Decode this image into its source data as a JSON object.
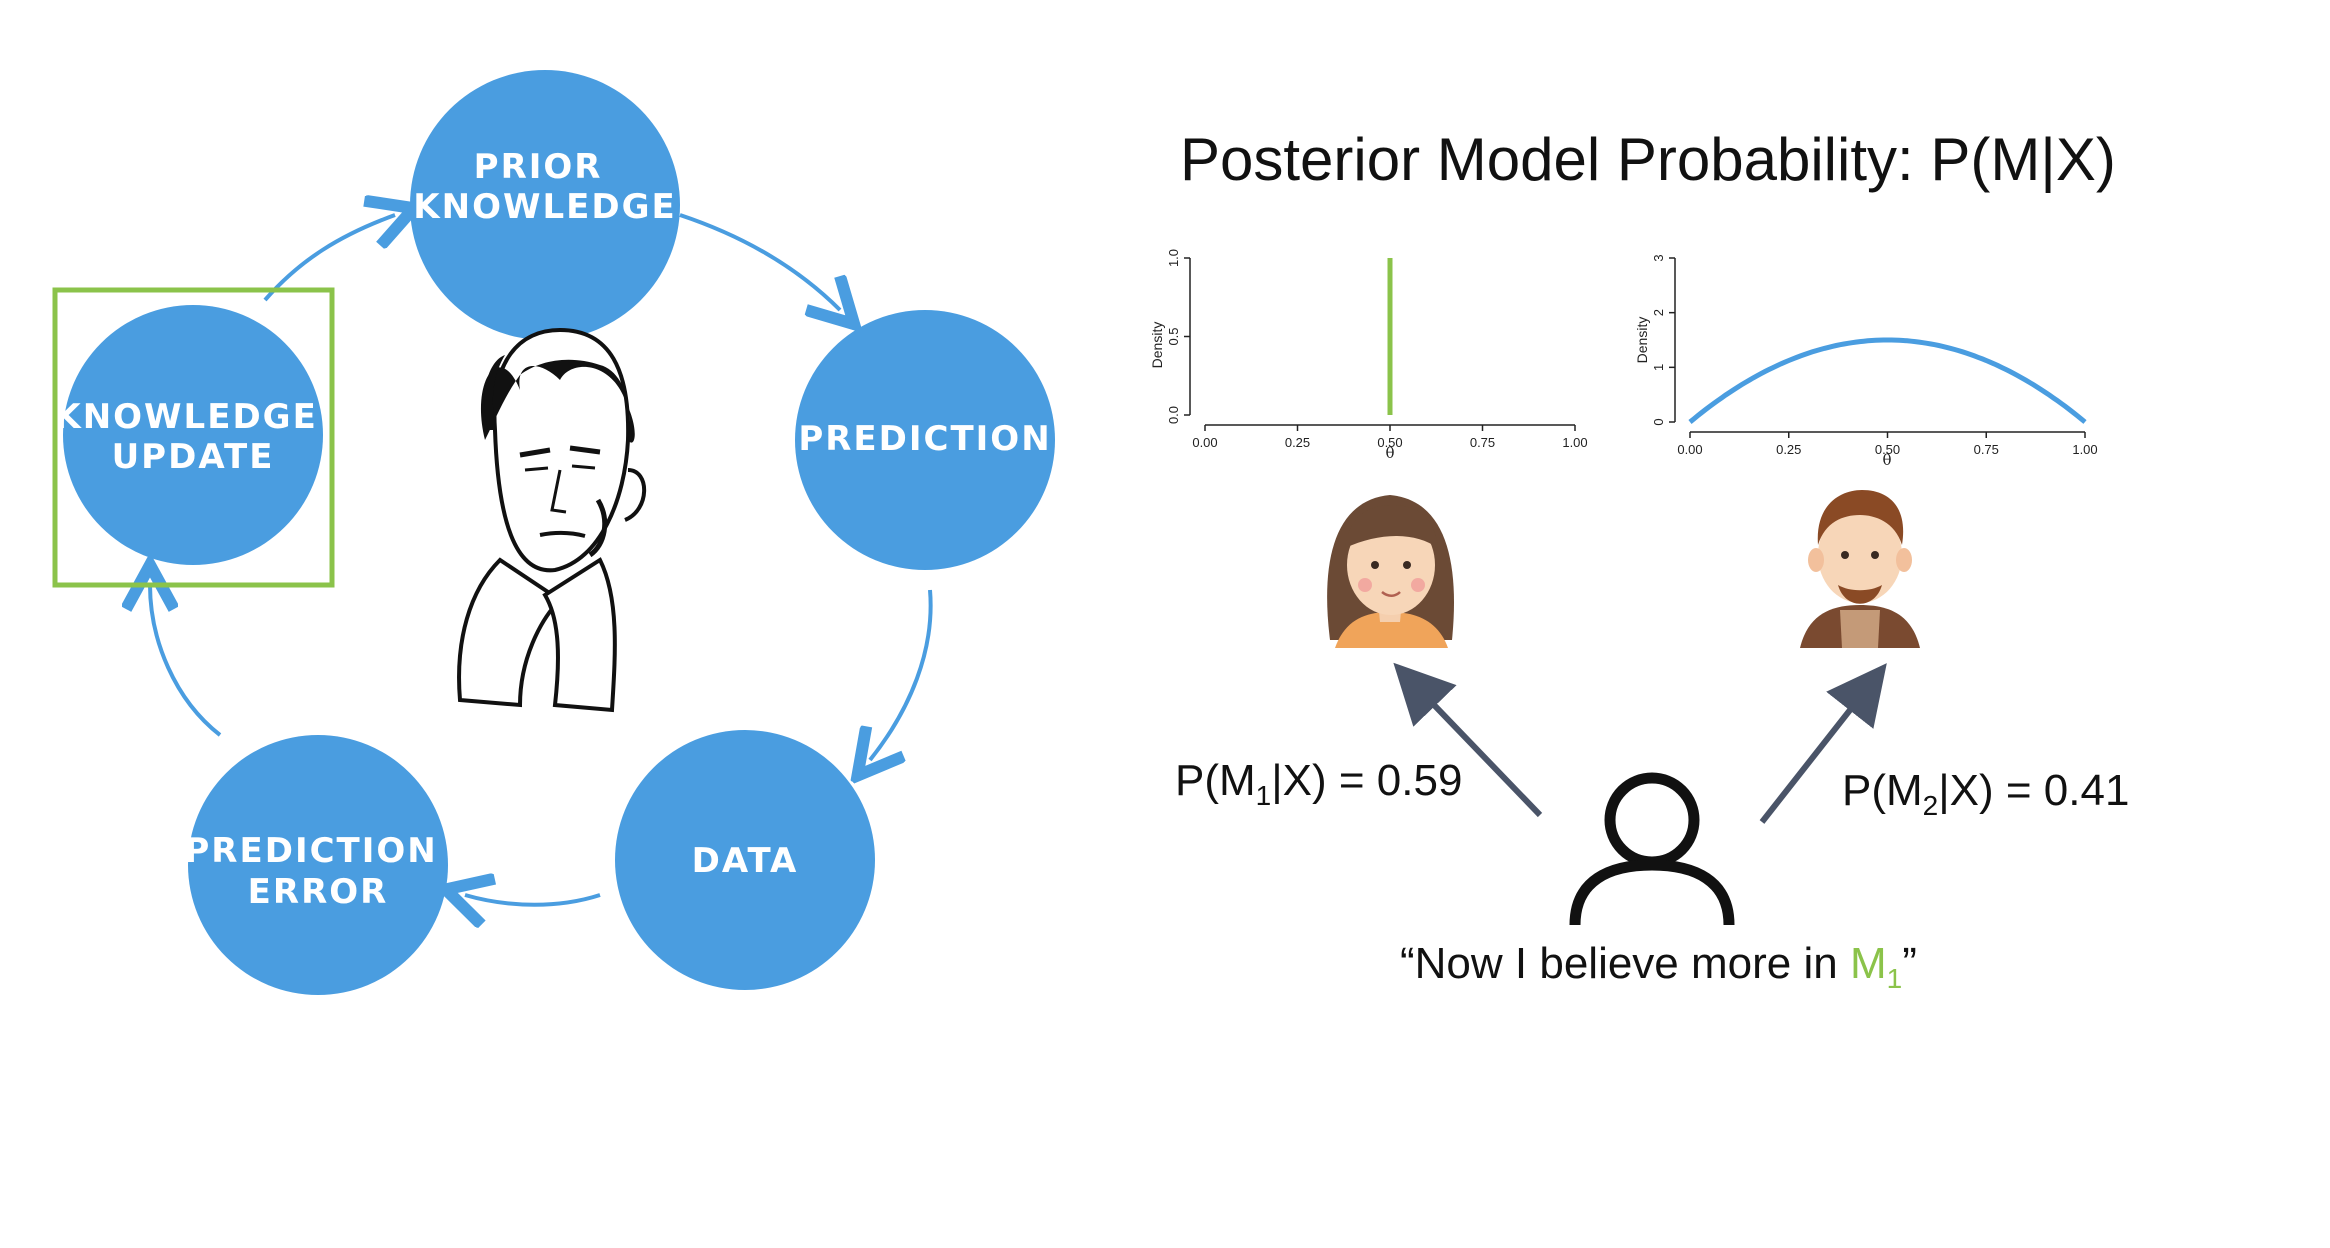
{
  "cycle": {
    "nodes": [
      {
        "lines": [
          "PRIOR",
          "KNOWLEDGE"
        ]
      },
      {
        "lines": [
          "PREDICTION"
        ]
      },
      {
        "lines": [
          "DATA"
        ]
      },
      {
        "lines": [
          "PREDICTION",
          "ERROR"
        ]
      },
      {
        "lines": [
          "KNOWLEDGE",
          "UPDATE"
        ]
      }
    ],
    "highlighted_node": "KNOWLEDGE UPDATE",
    "circle_color": "#4a9de0",
    "highlight_color": "#8bc34a"
  },
  "title": "Posterior Model Probability: P(M|X)",
  "chart_data": [
    {
      "type": "line",
      "description_shape": "spike at 0.5",
      "x": [
        0.5,
        0.5
      ],
      "y": [
        0,
        1.0
      ],
      "xlim": [
        0,
        1
      ],
      "ylim": [
        0,
        1.0
      ],
      "xticks": [
        "0.00",
        "0.25",
        "0.50",
        "0.75",
        "1.00"
      ],
      "yticks": [
        "0.0",
        "0.5",
        "1.0"
      ],
      "xlabel": "θ",
      "ylabel": "Density",
      "color": "#8bc34a"
    },
    {
      "type": "line",
      "x": [
        0,
        0.1,
        0.2,
        0.3,
        0.4,
        0.5,
        0.6,
        0.7,
        0.8,
        0.9,
        1.0
      ],
      "y": [
        0,
        0.54,
        0.96,
        1.26,
        1.44,
        1.5,
        1.44,
        1.26,
        0.96,
        0.54,
        0
      ],
      "xlim": [
        0,
        1
      ],
      "ylim": [
        0,
        3
      ],
      "xticks": [
        "0.00",
        "0.25",
        "0.50",
        "0.75",
        "1.00"
      ],
      "yticks": [
        "0",
        "1",
        "2",
        "3"
      ],
      "xlabel": "θ",
      "ylabel": "Density",
      "color": "#4a9de0"
    }
  ],
  "model1": {
    "prefix": "P(M",
    "sub": "1",
    "suffix": "|X) = 0.59"
  },
  "model2": {
    "prefix": "P(M",
    "sub": "2",
    "suffix": "|X) = 0.41"
  },
  "quote": {
    "before": "“Now I believe more in ",
    "model": "M",
    "sub": "1",
    "after": "”"
  },
  "icons": {
    "woman": "woman-avatar-icon",
    "man": "man-avatar-icon",
    "person": "person-icon",
    "scientist": "scientist-portrait"
  },
  "colors": {
    "arrow": "#4a9de0",
    "pointer": "#4a5468",
    "accent": "#8bc34a"
  }
}
